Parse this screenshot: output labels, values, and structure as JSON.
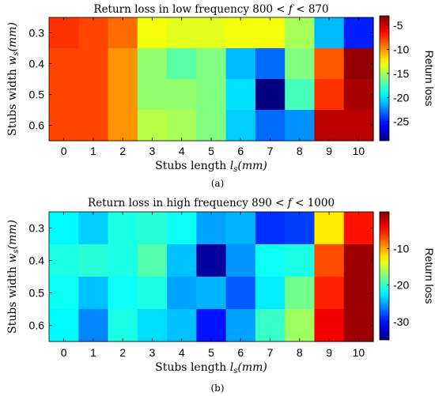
{
  "figure": {
    "panel_a_caption": "(a)",
    "panel_b_caption": "(b)"
  },
  "chart_data": [
    {
      "type": "heatmap",
      "title": "Return loss in low frequency 800 < f < 870",
      "xlabel": "Stubs length l_s(mm)",
      "ylabel": "Stubs width w_s(mm)",
      "x_categories": [
        "0",
        "1",
        "2",
        "3",
        "4",
        "5",
        "6",
        "7",
        "8",
        "9",
        "10"
      ],
      "y_categories": [
        "0.3",
        "0.4",
        "0.5",
        "0.6"
      ],
      "colorbar_label": "Return loss",
      "colorbar_ticks": [
        "-5",
        "-10",
        "-15",
        "-20",
        "-25"
      ],
      "colorbar_tick_values": [
        -5,
        -10,
        -15,
        -20,
        -25
      ],
      "clim": [
        -29,
        -3
      ],
      "colormap": "jet",
      "values": [
        [
          -7.5,
          -8.0,
          -9.0,
          -13.0,
          -13.5,
          -13.5,
          -13.0,
          -13.0,
          -15.0,
          -21.0,
          -25.0
        ],
        [
          -8.0,
          -8.0,
          -10.0,
          -15.5,
          -17.0,
          -16.0,
          -21.0,
          -23.0,
          -16.0,
          -8.5,
          -3.5
        ],
        [
          -8.0,
          -8.0,
          -10.0,
          -15.5,
          -15.5,
          -16.0,
          -20.0,
          -29.0,
          -17.5,
          -7.5,
          -4.0
        ],
        [
          -8.0,
          -8.0,
          -10.0,
          -14.5,
          -15.0,
          -16.0,
          -20.5,
          -23.0,
          -22.0,
          -4.5,
          -4.5
        ]
      ]
    },
    {
      "type": "heatmap",
      "title": "Return loss in high frequency 890 < f < 1000",
      "xlabel": "Stubs length l_s(mm)",
      "ylabel": "Stubs width w_s(mm)",
      "x_categories": [
        "0",
        "1",
        "2",
        "3",
        "4",
        "5",
        "6",
        "7",
        "8",
        "9",
        "10"
      ],
      "y_categories": [
        "0.3",
        "0.4",
        "0.5",
        "0.6"
      ],
      "colorbar_label": "Return loss",
      "colorbar_ticks": [
        "-10",
        "-20",
        "-30"
      ],
      "colorbar_tick_values": [
        -10,
        -20,
        -30
      ],
      "clim": [
        -35,
        0
      ],
      "colormap": "jet",
      "values": [
        [
          -22.0,
          -23.5,
          -21.0,
          -20.5,
          -21.5,
          -25.0,
          -24.5,
          -29.0,
          -28.5,
          -12.5,
          -5.0
        ],
        [
          -21.0,
          -20.5,
          -21.0,
          -19.0,
          -24.0,
          -34.0,
          -25.5,
          -21.5,
          -21.0,
          -7.0,
          -1.0
        ],
        [
          -21.5,
          -24.0,
          -21.5,
          -21.0,
          -25.0,
          -24.5,
          -27.5,
          -22.5,
          -18.0,
          -5.5,
          -1.0
        ],
        [
          -22.0,
          -26.0,
          -21.0,
          -23.0,
          -24.0,
          -30.0,
          -25.0,
          -20.0,
          -16.5,
          -4.0,
          -1.0
        ]
      ]
    }
  ]
}
